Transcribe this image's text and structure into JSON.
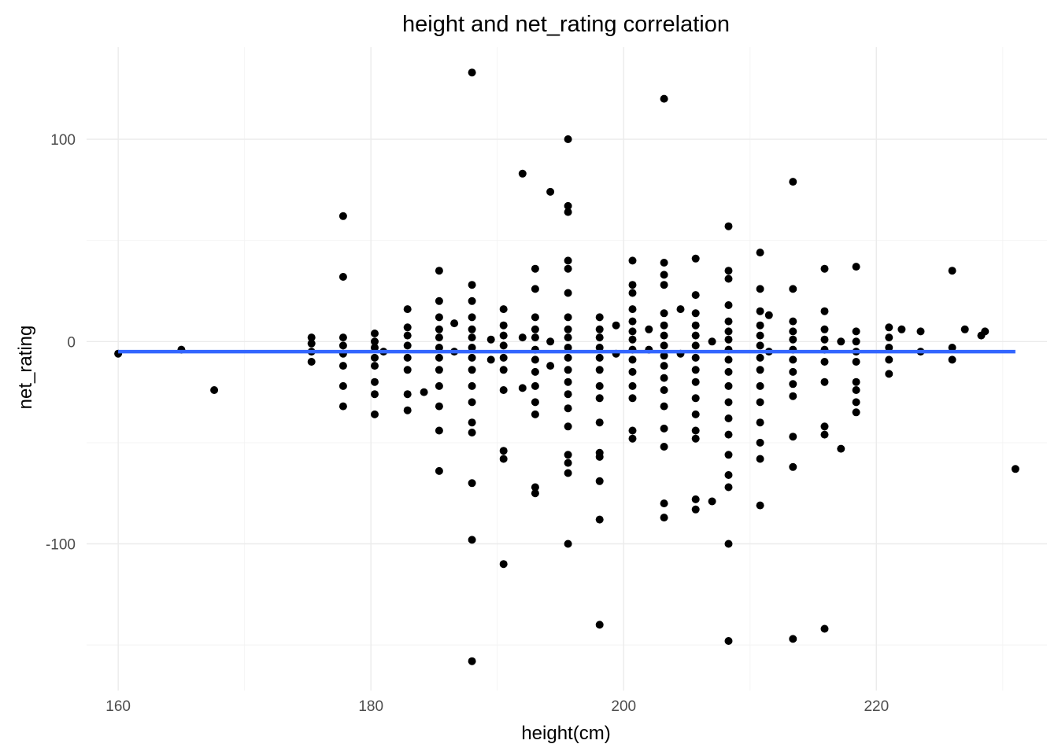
{
  "chart_data": {
    "type": "scatter",
    "title": "height and net_rating correlation",
    "xlabel": "height(cm)",
    "ylabel": "net_rating",
    "xlim": [
      157.5,
      233.5
    ],
    "ylim": [
      -172.5,
      145.5
    ],
    "x_ticks": [
      160,
      180,
      200,
      220
    ],
    "x_tick_labels": [
      "160",
      "180",
      "200",
      "220"
    ],
    "x_minor_ticks": [
      170,
      190,
      210,
      230
    ],
    "y_ticks": [
      -100,
      0,
      100
    ],
    "y_tick_labels": [
      "-100",
      "0",
      "100"
    ],
    "y_minor_ticks": [
      -150,
      -50,
      50
    ],
    "grid": true,
    "point_color": "#000000",
    "trend_color": "#3366FF",
    "trend_line": {
      "x": [
        160,
        231
      ],
      "y": [
        -5,
        -5
      ]
    },
    "series": [
      {
        "points": [
          [
            160,
            -6
          ],
          [
            165,
            -4
          ],
          [
            167.6,
            -24
          ],
          [
            175.3,
            2
          ],
          [
            175.3,
            -1
          ],
          [
            175.3,
            -5
          ],
          [
            175.3,
            -10
          ],
          [
            177.8,
            62
          ],
          [
            177.8,
            32
          ],
          [
            177.8,
            2
          ],
          [
            177.8,
            -2
          ],
          [
            177.8,
            -6
          ],
          [
            177.8,
            -12
          ],
          [
            177.8,
            -22
          ],
          [
            177.8,
            -32
          ],
          [
            180.3,
            4
          ],
          [
            180.3,
            0
          ],
          [
            180.3,
            -3
          ],
          [
            180.3,
            -8
          ],
          [
            180.3,
            -12
          ],
          [
            180.3,
            -20
          ],
          [
            180.3,
            -26
          ],
          [
            180.3,
            -36
          ],
          [
            181,
            -5
          ],
          [
            182.9,
            16
          ],
          [
            182.9,
            7
          ],
          [
            182.9,
            3
          ],
          [
            182.9,
            -2
          ],
          [
            182.9,
            -8
          ],
          [
            182.9,
            -14
          ],
          [
            182.9,
            -26
          ],
          [
            182.9,
            -34
          ],
          [
            185.4,
            35
          ],
          [
            185.4,
            20
          ],
          [
            185.4,
            12
          ],
          [
            185.4,
            6
          ],
          [
            185.4,
            2
          ],
          [
            185.4,
            -3
          ],
          [
            185.4,
            -8
          ],
          [
            185.4,
            -14
          ],
          [
            185.4,
            -22
          ],
          [
            185.4,
            -32
          ],
          [
            185.4,
            -44
          ],
          [
            185.4,
            -64
          ],
          [
            184.2,
            -25
          ],
          [
            186.6,
            9
          ],
          [
            186.6,
            -5
          ],
          [
            188,
            133
          ],
          [
            188,
            28
          ],
          [
            188,
            20
          ],
          [
            188,
            12
          ],
          [
            188,
            6
          ],
          [
            188,
            2
          ],
          [
            188,
            -3
          ],
          [
            188,
            -8
          ],
          [
            188,
            -14
          ],
          [
            188,
            -22
          ],
          [
            188,
            -30
          ],
          [
            188,
            -40
          ],
          [
            188,
            -45
          ],
          [
            188,
            -70
          ],
          [
            188,
            -98
          ],
          [
            188,
            -158
          ],
          [
            189.5,
            1
          ],
          [
            189.5,
            -9
          ],
          [
            190.5,
            16
          ],
          [
            190.5,
            8
          ],
          [
            190.5,
            3
          ],
          [
            190.5,
            -2
          ],
          [
            190.5,
            -8
          ],
          [
            190.5,
            -14
          ],
          [
            190.5,
            -24
          ],
          [
            190.5,
            -54
          ],
          [
            190.5,
            -58
          ],
          [
            190.5,
            -110
          ],
          [
            192,
            83
          ],
          [
            192,
            2
          ],
          [
            192,
            -23
          ],
          [
            193,
            36
          ],
          [
            193,
            26
          ],
          [
            193,
            12
          ],
          [
            193,
            6
          ],
          [
            193,
            2
          ],
          [
            193,
            -4
          ],
          [
            193,
            -9
          ],
          [
            193,
            -15
          ],
          [
            193,
            -22
          ],
          [
            193,
            -30
          ],
          [
            193,
            -36
          ],
          [
            193,
            -72
          ],
          [
            193,
            -75
          ],
          [
            194.2,
            74
          ],
          [
            194.2,
            0
          ],
          [
            194.2,
            -12
          ],
          [
            195.6,
            100
          ],
          [
            195.6,
            67
          ],
          [
            195.6,
            64
          ],
          [
            195.6,
            40
          ],
          [
            195.6,
            36
          ],
          [
            195.6,
            24
          ],
          [
            195.6,
            12
          ],
          [
            195.6,
            6
          ],
          [
            195.6,
            2
          ],
          [
            195.6,
            -3
          ],
          [
            195.6,
            -8
          ],
          [
            195.6,
            -14
          ],
          [
            195.6,
            -20
          ],
          [
            195.6,
            -26
          ],
          [
            195.6,
            -33
          ],
          [
            195.6,
            -42
          ],
          [
            195.6,
            -56
          ],
          [
            195.6,
            -60
          ],
          [
            195.6,
            -65
          ],
          [
            195.6,
            -100
          ],
          [
            198.1,
            12
          ],
          [
            198.1,
            6
          ],
          [
            198.1,
            2
          ],
          [
            198.1,
            -3
          ],
          [
            198.1,
            -8
          ],
          [
            198.1,
            -14
          ],
          [
            198.1,
            -22
          ],
          [
            198.1,
            -28
          ],
          [
            198.1,
            -40
          ],
          [
            198.1,
            -55
          ],
          [
            198.1,
            -57
          ],
          [
            198.1,
            -69
          ],
          [
            198.1,
            -88
          ],
          [
            198.1,
            -140
          ],
          [
            199.4,
            8
          ],
          [
            199.4,
            -6
          ],
          [
            200.7,
            40
          ],
          [
            200.7,
            28
          ],
          [
            200.7,
            24
          ],
          [
            200.7,
            16
          ],
          [
            200.7,
            10
          ],
          [
            200.7,
            5
          ],
          [
            200.7,
            1
          ],
          [
            200.7,
            -4
          ],
          [
            200.7,
            -9
          ],
          [
            200.7,
            -15
          ],
          [
            200.7,
            -22
          ],
          [
            200.7,
            -28
          ],
          [
            200.7,
            -44
          ],
          [
            200.7,
            -48
          ],
          [
            202,
            6
          ],
          [
            202,
            -4
          ],
          [
            203.2,
            120
          ],
          [
            203.2,
            39
          ],
          [
            203.2,
            33
          ],
          [
            203.2,
            28
          ],
          [
            203.2,
            14
          ],
          [
            203.2,
            8
          ],
          [
            203.2,
            3
          ],
          [
            203.2,
            -2
          ],
          [
            203.2,
            -7
          ],
          [
            203.2,
            -12
          ],
          [
            203.2,
            -18
          ],
          [
            203.2,
            -24
          ],
          [
            203.2,
            -32
          ],
          [
            203.2,
            -43
          ],
          [
            203.2,
            -52
          ],
          [
            203.2,
            -80
          ],
          [
            203.2,
            -87
          ],
          [
            204.5,
            16
          ],
          [
            204.5,
            -6
          ],
          [
            205.7,
            41
          ],
          [
            205.7,
            23
          ],
          [
            205.7,
            14
          ],
          [
            205.7,
            8
          ],
          [
            205.7,
            3
          ],
          [
            205.7,
            -2
          ],
          [
            205.7,
            -8
          ],
          [
            205.7,
            -14
          ],
          [
            205.7,
            -20
          ],
          [
            205.7,
            -28
          ],
          [
            205.7,
            -36
          ],
          [
            205.7,
            -44
          ],
          [
            205.7,
            -48
          ],
          [
            205.7,
            -78
          ],
          [
            205.7,
            -83
          ],
          [
            207,
            -79
          ],
          [
            207,
            0
          ],
          [
            208.3,
            57
          ],
          [
            208.3,
            35
          ],
          [
            208.3,
            31
          ],
          [
            208.3,
            18
          ],
          [
            208.3,
            10
          ],
          [
            208.3,
            5
          ],
          [
            208.3,
            1
          ],
          [
            208.3,
            -4
          ],
          [
            208.3,
            -9
          ],
          [
            208.3,
            -15
          ],
          [
            208.3,
            -22
          ],
          [
            208.3,
            -30
          ],
          [
            208.3,
            -38
          ],
          [
            208.3,
            -46
          ],
          [
            208.3,
            -56
          ],
          [
            208.3,
            -66
          ],
          [
            208.3,
            -72
          ],
          [
            208.3,
            -100
          ],
          [
            208.3,
            -148
          ],
          [
            210.8,
            44
          ],
          [
            210.8,
            26
          ],
          [
            210.8,
            15
          ],
          [
            210.8,
            8
          ],
          [
            210.8,
            3
          ],
          [
            210.8,
            -2
          ],
          [
            210.8,
            -8
          ],
          [
            210.8,
            -14
          ],
          [
            210.8,
            -22
          ],
          [
            210.8,
            -30
          ],
          [
            210.8,
            -40
          ],
          [
            210.8,
            -50
          ],
          [
            210.8,
            -58
          ],
          [
            210.8,
            -81
          ],
          [
            211.5,
            13
          ],
          [
            211.5,
            -5
          ],
          [
            213.4,
            79
          ],
          [
            213.4,
            26
          ],
          [
            213.4,
            10
          ],
          [
            213.4,
            5
          ],
          [
            213.4,
            1
          ],
          [
            213.4,
            -4
          ],
          [
            213.4,
            -9
          ],
          [
            213.4,
            -15
          ],
          [
            213.4,
            -21
          ],
          [
            213.4,
            -27
          ],
          [
            213.4,
            -47
          ],
          [
            213.4,
            -62
          ],
          [
            213.4,
            -147
          ],
          [
            215.9,
            36
          ],
          [
            215.9,
            15
          ],
          [
            215.9,
            6
          ],
          [
            215.9,
            1
          ],
          [
            215.9,
            -4
          ],
          [
            215.9,
            -10
          ],
          [
            215.9,
            -20
          ],
          [
            215.9,
            -42
          ],
          [
            215.9,
            -46
          ],
          [
            215.9,
            -142
          ],
          [
            217.2,
            0
          ],
          [
            217.2,
            -53
          ],
          [
            218.4,
            37
          ],
          [
            218.4,
            5
          ],
          [
            218.4,
            0
          ],
          [
            218.4,
            -5
          ],
          [
            218.4,
            -10
          ],
          [
            218.4,
            -20
          ],
          [
            218.4,
            -24
          ],
          [
            218.4,
            -30
          ],
          [
            218.4,
            -35
          ],
          [
            221,
            7
          ],
          [
            221,
            2
          ],
          [
            221,
            -3
          ],
          [
            221,
            -9
          ],
          [
            221,
            -16
          ],
          [
            222,
            6
          ],
          [
            223.5,
            5
          ],
          [
            223.5,
            -5
          ],
          [
            226,
            35
          ],
          [
            226,
            -3
          ],
          [
            226,
            -9
          ],
          [
            227,
            6
          ],
          [
            228.3,
            3
          ],
          [
            228.6,
            5
          ],
          [
            231,
            -63
          ]
        ]
      }
    ]
  }
}
